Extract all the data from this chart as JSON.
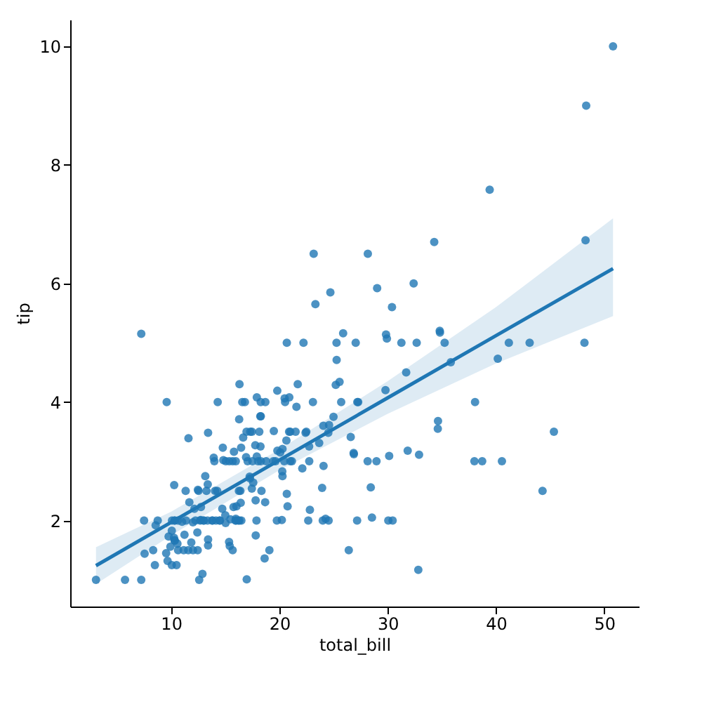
{
  "chart_data": {
    "type": "scatter",
    "xlabel": "total_bill",
    "ylabel": "tip",
    "xlim": [
      0.69,
      53.19
    ],
    "ylim": [
      0.55,
      10.45
    ],
    "xticks": [
      10,
      20,
      30,
      40,
      50
    ],
    "yticks": [
      2,
      4,
      6,
      8,
      10
    ],
    "grid": false,
    "series": [
      {
        "color": "#1f77b4",
        "marker": "circle",
        "x": [
          16.99,
          10.34,
          21.01,
          23.68,
          24.59,
          25.29,
          8.77,
          26.88,
          15.04,
          14.78,
          10.27,
          35.26,
          15.42,
          14.83,
          21.58,
          10.33,
          16.29,
          16.97,
          20.65,
          17.92,
          20.29,
          15.77,
          39.42,
          19.82,
          17.81,
          13.37,
          12.69,
          21.7,
          19.65,
          9.55,
          18.35,
          15.06,
          20.69,
          17.78,
          24.06,
          16.31,
          16.93,
          18.69,
          31.27,
          16.04,
          17.46,
          13.94,
          9.68,
          30.4,
          18.29,
          22.23,
          32.4,
          28.55,
          18.04,
          12.54,
          10.29,
          34.81,
          9.94,
          25.56,
          19.49,
          38.01,
          26.41,
          11.24,
          48.27,
          20.29,
          13.81,
          11.02,
          18.29,
          17.59,
          20.08,
          3.07,
          20.23,
          15.01,
          12.02,
          17.07,
          26.86,
          25.28,
          14.73,
          10.51,
          17.92,
          27.2,
          22.76,
          17.29,
          19.44,
          16.66,
          10.07,
          32.68,
          15.98,
          34.83,
          13.03,
          18.28,
          24.71,
          21.16,
          28.97,
          22.49,
          5.75,
          16.32,
          22.75,
          40.17,
          27.28,
          12.03,
          21.01,
          12.46,
          11.35,
          15.38,
          44.3,
          22.42,
          20.92,
          15.36,
          20.49,
          25.21,
          18.24,
          14.31,
          14.0,
          7.25,
          38.07,
          23.95,
          25.71,
          17.31,
          29.93,
          10.65,
          12.43,
          24.08,
          11.69,
          13.42,
          14.26,
          15.95,
          12.48,
          29.8,
          14.52,
          11.38,
          22.82,
          19.08,
          20.27,
          11.17,
          12.26,
          18.26,
          8.51,
          10.33,
          14.15,
          16.0,
          13.16,
          17.47,
          34.3,
          41.19,
          27.05,
          16.43,
          8.35,
          18.64,
          11.87,
          9.78,
          7.51,
          14.07,
          17.26,
          24.55,
          19.77,
          29.85,
          48.17,
          25.0,
          13.39,
          16.49,
          21.5,
          16.21,
          13.81,
          17.51,
          24.52,
          20.76,
          31.71,
          10.59,
          10.63,
          50.81,
          15.81,
          7.25,
          31.85,
          16.82,
          32.9,
          17.89,
          14.48,
          9.6,
          34.63,
          34.65,
          23.33,
          45.35,
          23.17,
          40.55,
          20.69,
          20.9,
          30.46,
          18.15,
          23.1,
          15.69,
          19.81,
          28.44,
          15.48,
          16.58,
          7.56,
          10.34,
          43.11,
          13.0,
          18.71,
          12.74,
          16.4,
          20.53,
          16.47,
          26.59,
          38.73,
          24.27,
          12.76,
          30.06,
          25.89,
          48.33,
          13.27,
          28.17,
          12.9,
          28.15,
          11.59,
          30.14,
          12.16,
          13.42,
          8.58,
          15.98,
          13.42,
          16.27,
          10.09,
          20.45,
          22.12,
          24.01,
          15.69,
          11.61,
          10.07,
          12.6,
          32.83,
          35.83,
          29.03,
          27.18,
          22.67,
          17.82,
          18.78
        ],
        "values": [
          1.01,
          1.66,
          3.5,
          3.31,
          3.61,
          4.71,
          2.0,
          3.12,
          1.96,
          3.23,
          1.71,
          5.0,
          1.57,
          3.02,
          3.92,
          1.67,
          3.71,
          3.5,
          3.35,
          4.08,
          2.75,
          2.23,
          7.58,
          3.18,
          2.34,
          2.0,
          2.0,
          4.3,
          3.0,
          1.45,
          2.5,
          3.0,
          2.45,
          3.27,
          3.6,
          2.0,
          3.07,
          2.31,
          5.0,
          2.24,
          2.54,
          3.06,
          1.32,
          5.6,
          3.0,
          5.0,
          6.0,
          2.05,
          3.0,
          2.5,
          2.6,
          5.2,
          1.56,
          4.34,
          3.51,
          3.0,
          1.5,
          1.76,
          6.73,
          3.21,
          2.0,
          1.98,
          3.76,
          2.64,
          3.15,
          1.0,
          2.01,
          2.09,
          1.97,
          3.0,
          3.14,
          5.0,
          2.2,
          1.25,
          3.08,
          4.0,
          3.0,
          2.71,
          3.0,
          3.4,
          1.83,
          5.0,
          2.03,
          5.17,
          2.0,
          4.0,
          5.85,
          3.0,
          3.0,
          3.5,
          1.0,
          4.3,
          3.25,
          4.73,
          4.0,
          1.5,
          3.0,
          1.5,
          2.5,
          3.0,
          2.5,
          3.48,
          4.08,
          1.64,
          4.06,
          4.29,
          3.76,
          4.0,
          3.0,
          1.0,
          4.0,
          2.55,
          4.0,
          3.5,
          5.07,
          1.5,
          1.8,
          2.92,
          2.31,
          1.68,
          2.5,
          2.0,
          2.52,
          4.2,
          2.0,
          2.0,
          2.18,
          1.5,
          2.83,
          1.5,
          2.0,
          3.25,
          1.25,
          2.0,
          2.0,
          2.0,
          2.75,
          3.5,
          6.7,
          5.0,
          5.0,
          2.3,
          1.5,
          1.36,
          1.63,
          1.73,
          2.0,
          2.5,
          2.74,
          2.0,
          2.0,
          5.14,
          5.0,
          3.75,
          2.61,
          2.0,
          3.5,
          2.0,
          2.0,
          3.0,
          3.48,
          2.24,
          4.5,
          1.61,
          2.0,
          10.0,
          3.16,
          5.15,
          3.18,
          4.0,
          3.11,
          2.0,
          2.0,
          4.0,
          3.55,
          3.68,
          5.65,
          3.5,
          6.5,
          3.0,
          5.0,
          3.5,
          2.0,
          3.5,
          4.0,
          1.5,
          4.19,
          2.56,
          2.02,
          4.0,
          1.44,
          2.0,
          5.0,
          2.0,
          4.0,
          2.01,
          2.5,
          4.0,
          3.23,
          3.41,
          3.0,
          2.03,
          2.23,
          2.0,
          5.16,
          9.0,
          2.5,
          6.5,
          1.1,
          3.0,
          1.5,
          3.09,
          2.2,
          3.48,
          1.92,
          3.0,
          1.58,
          2.5,
          2.0,
          3.0,
          2.88,
          2.0,
          3.0,
          3.39,
          1.25,
          1.0,
          1.17,
          4.67,
          5.92,
          2.0,
          2.0,
          1.75,
          3.0
        ]
      },
      {
        "type": "line",
        "color": "#1f77b4",
        "marker": "none",
        "x": [
          3.07,
          10,
          20,
          30,
          40,
          50.81
        ],
        "values": [
          1.24,
          1.97,
          3.02,
          4.07,
          5.12,
          6.25
        ],
        "lower": [
          0.93,
          1.75,
          2.85,
          3.8,
          4.65,
          5.45
        ],
        "upper": [
          1.55,
          2.15,
          3.2,
          4.35,
          5.6,
          7.1
        ]
      }
    ]
  }
}
